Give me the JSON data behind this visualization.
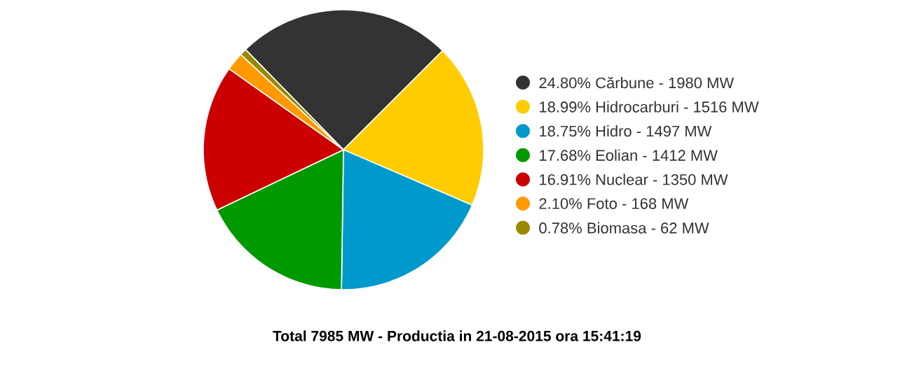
{
  "chart_data": {
    "type": "pie",
    "title": "Total 7985 MW - Productia in 21-08-2015 ora 15:41:19",
    "categories": [
      "24.80% Cărbune - 1980 MW",
      "18.99% Hidrocarburi - 1516 MW",
      "18.75% Hidro - 1497 MW",
      "17.68% Eolian - 1412 MW",
      "16.91% Nuclear - 1350 MW",
      "2.10% Foto - 168 MW",
      "0.78% Biomasa - 62 MW"
    ],
    "values": [
      24.8,
      18.99,
      18.75,
      17.68,
      16.91,
      2.1,
      0.78
    ],
    "colors": [
      "#333333",
      "#ffcc00",
      "#0099cc",
      "#009900",
      "#cc0000",
      "#ff9900",
      "#998800"
    ],
    "legend": "right"
  }
}
